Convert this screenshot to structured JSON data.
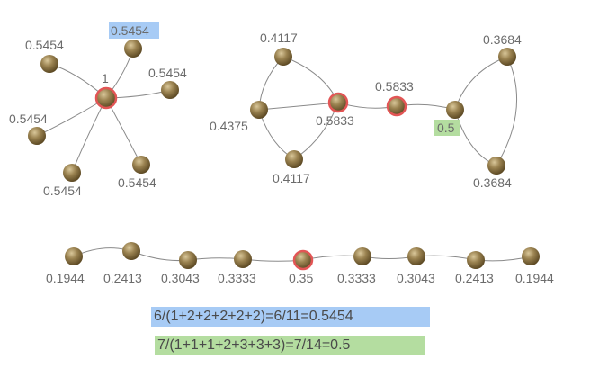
{
  "colors": {
    "node": "#8b7440",
    "highlight_ring": "#e25555",
    "edge": "#8a8a8a",
    "label": "#6b6b6b",
    "blue_highlight": "#a7cbf5",
    "green_highlight": "#b4dda0"
  },
  "star_graph": {
    "center": "1",
    "leaves": [
      "0.5454",
      "0.5454",
      "0.5454",
      "0.5454",
      "0.5454",
      "0.5454"
    ]
  },
  "barbell_graph": {
    "left_top": "0.4117",
    "left_left": "0.4375",
    "left_right": "0.5833",
    "left_bottom": "0.4117",
    "bridge": "0.5833",
    "right_hub": "0.5",
    "right_top": "0.3684",
    "right_bottom": "0.3684"
  },
  "path_graph": {
    "labels": [
      "0.1944",
      "0.2413",
      "0.3043",
      "0.3333",
      "0.35",
      "0.3333",
      "0.3043",
      "0.2413",
      "0.1944"
    ]
  },
  "formulas": {
    "blue": "6/(1+2+2+2+2+2)=6/11=0.5454",
    "green": "7/(1+1+1+2+3+3+3)=7/14=0.5"
  }
}
